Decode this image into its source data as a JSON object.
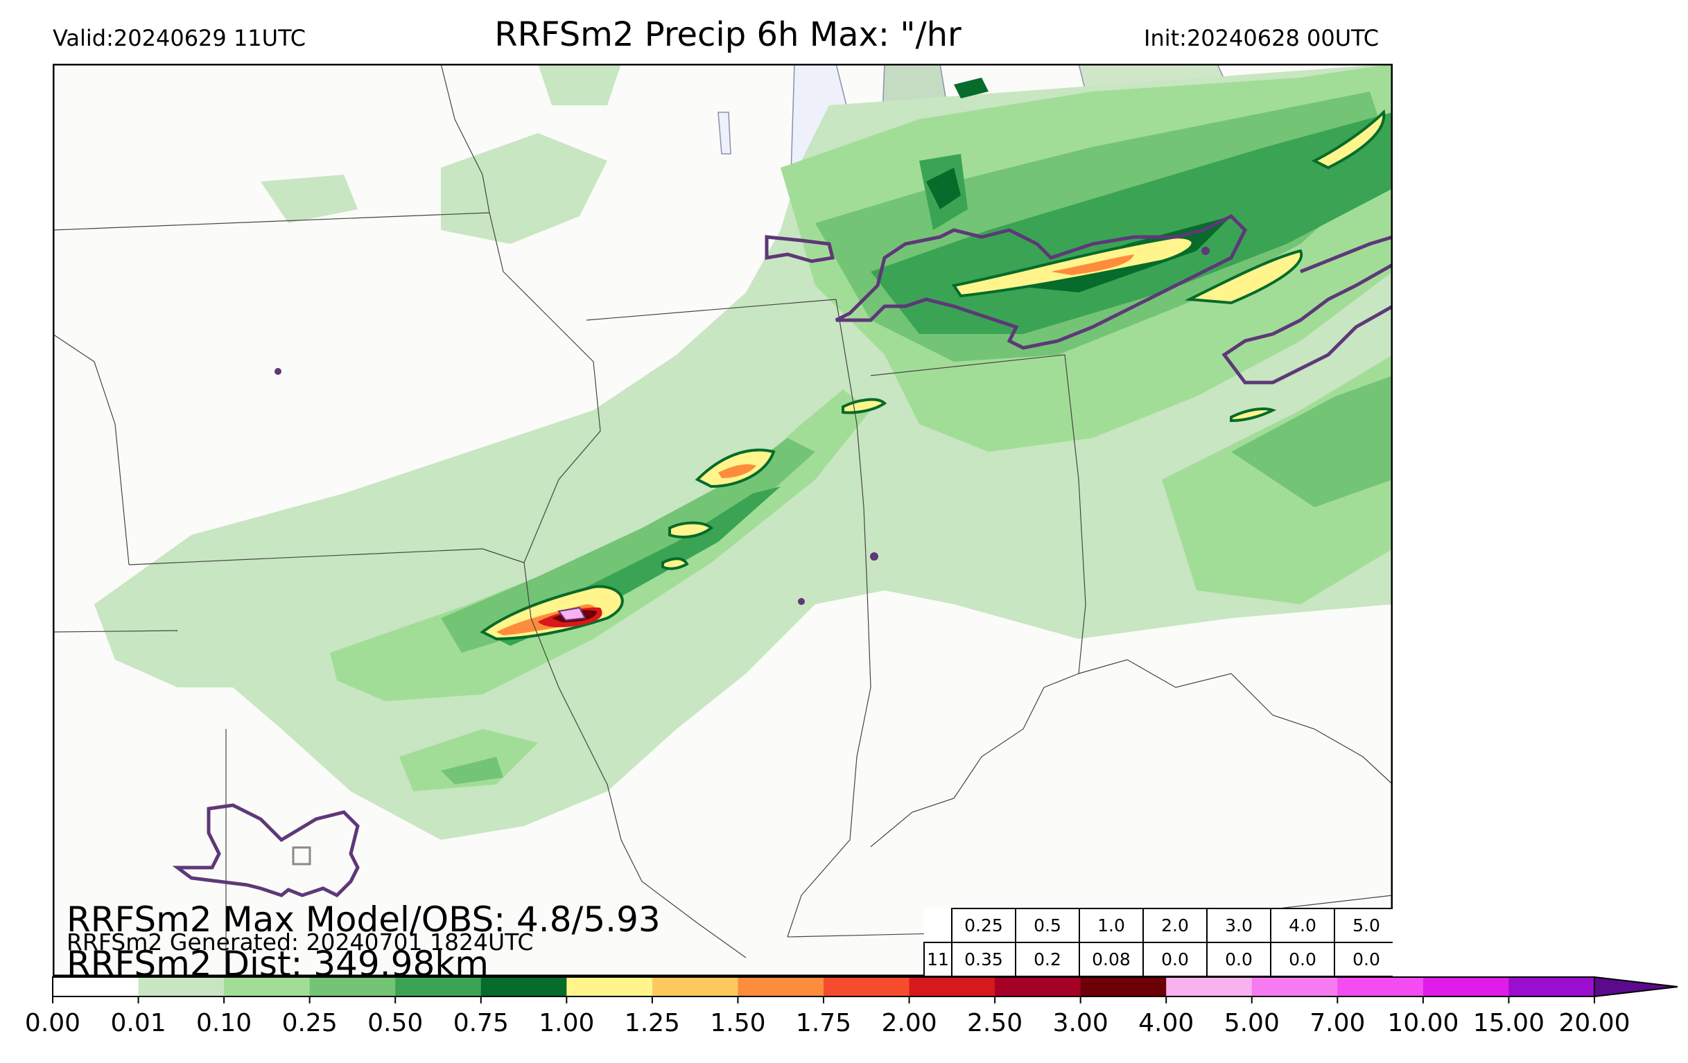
{
  "header": {
    "valid": "Valid:20240629 11UTC",
    "title": "RRFSm2 Precip 6h Max: \"/hr",
    "init": "Init:20240628 00UTC"
  },
  "stats": {
    "max_model_obs": "RRFSm2 Max Model/OBS: 4.8/5.93",
    "generated": "RRFSm2 Generated: 20240701 1824UTC",
    "dist": "RRFSm2 Dist: 349.98km"
  },
  "threshold_table": {
    "row_label": "11",
    "thresholds": [
      "0.25",
      "0.5",
      "1.0",
      "2.0",
      "3.0",
      "4.0",
      "5.0"
    ],
    "values": [
      "0.35",
      "0.2",
      "0.08",
      "0.0",
      "0.0",
      "0.0",
      "0.0"
    ]
  },
  "colorbar": {
    "ticks": [
      "0.00",
      "0.01",
      "0.10",
      "0.25",
      "0.50",
      "0.75",
      "1.00",
      "1.25",
      "1.50",
      "1.75",
      "2.00",
      "2.50",
      "3.00",
      "4.00",
      "5.00",
      "7.00",
      "10.00",
      "15.00",
      "20.00"
    ],
    "colors": [
      "#ffffff",
      "#c8e6c1",
      "#a2dd98",
      "#74c476",
      "#3aa454",
      "#066b2b",
      "#fff58c",
      "#fdc95d",
      "#fd8d3c",
      "#f64b2c",
      "#d7191c",
      "#a50026",
      "#6d0006",
      "#f9b1f0",
      "#f67bf0",
      "#f34cf0",
      "#e01ce8",
      "#9a0ecf"
    ],
    "extend_color": "#5b0a8c"
  },
  "colors": {
    "map_background": "#fbfbf9",
    "obs_contour": "#5e3878",
    "state_border": "#444444",
    "lake_fill": "#eef0fa"
  }
}
